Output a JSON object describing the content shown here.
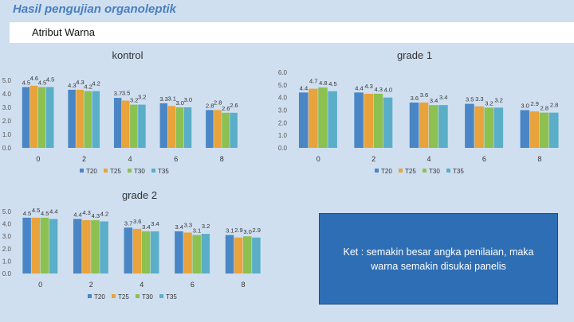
{
  "page": {
    "title": "Hasil pengujian organoleptik",
    "subtitle": "Atribut Warna",
    "note": "Ket : semakin besar angka penilaian, maka warna semakin disukai panelis"
  },
  "colors": {
    "T20": "#4a86c5",
    "T25": "#e8a33d",
    "T30": "#8cc152",
    "T35": "#5aaec8"
  },
  "chart_data": [
    {
      "type": "bar",
      "title": "kontrol",
      "categories": [
        "0",
        "2",
        "4",
        "6",
        "8"
      ],
      "ylim": [
        0,
        5
      ],
      "yticks": [
        "0.0",
        "1.0",
        "2.0",
        "3.0",
        "4.0",
        "5.0"
      ],
      "series": [
        {
          "name": "T20",
          "values": [
            4.5,
            4.3,
            3.7,
            3.3,
            2.8
          ]
        },
        {
          "name": "T25",
          "values": [
            4.6,
            4.3,
            3.5,
            3.1,
            2.8
          ]
        },
        {
          "name": "T30",
          "values": [
            4.5,
            4.2,
            3.2,
            3.0,
            2.6
          ]
        },
        {
          "name": "T35",
          "values": [
            4.5,
            4.2,
            3.2,
            3.0,
            2.6
          ]
        }
      ]
    },
    {
      "type": "bar",
      "title": "grade 1",
      "categories": [
        "0",
        "2",
        "4",
        "6",
        "8"
      ],
      "ylim": [
        0,
        6
      ],
      "yticks": [
        "0.0",
        "1.0",
        "2.0",
        "3.0",
        "4.0",
        "5.0",
        "6.0"
      ],
      "series": [
        {
          "name": "T20",
          "values": [
            4.4,
            4.4,
            3.6,
            3.5,
            3.0
          ]
        },
        {
          "name": "T25",
          "values": [
            4.7,
            4.3,
            3.6,
            3.3,
            2.9
          ]
        },
        {
          "name": "T30",
          "values": [
            4.8,
            4.3,
            3.4,
            3.2,
            2.8
          ]
        },
        {
          "name": "T35",
          "values": [
            4.5,
            4.0,
            3.4,
            3.2,
            2.8
          ]
        }
      ]
    },
    {
      "type": "bar",
      "title": "grade 2",
      "categories": [
        "0",
        "2",
        "4",
        "6",
        "8"
      ],
      "ylim": [
        0,
        5
      ],
      "yticks": [
        "0.0",
        "1.0",
        "2.0",
        "3.0",
        "4.0",
        "5.0"
      ],
      "series": [
        {
          "name": "T20",
          "values": [
            4.5,
            4.4,
            3.7,
            3.4,
            3.1
          ]
        },
        {
          "name": "T25",
          "values": [
            4.5,
            4.3,
            3.6,
            3.3,
            2.9
          ]
        },
        {
          "name": "T30",
          "values": [
            4.5,
            4.3,
            3.4,
            3.1,
            3.0
          ]
        },
        {
          "name": "T35",
          "values": [
            4.4,
            4.2,
            3.4,
            3.2,
            2.9
          ]
        }
      ]
    }
  ]
}
